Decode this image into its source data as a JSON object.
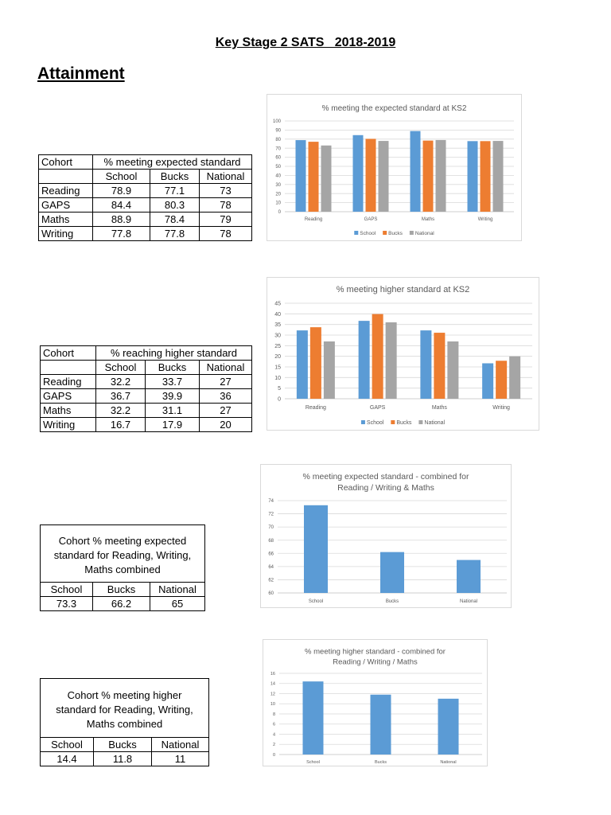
{
  "page": {
    "title": "Key Stage 2 SATS   2018-2019",
    "heading": "Attainment"
  },
  "tables": [
    {
      "cohort_header": "Cohort",
      "measure_header": "% meeting expected standard",
      "columns": [
        "School",
        "Bucks",
        "National"
      ],
      "rows": [
        {
          "label": "Reading",
          "values": [
            "78.9",
            "77.1",
            "73"
          ]
        },
        {
          "label": "GAPS",
          "values": [
            "84.4",
            "80.3",
            "78"
          ]
        },
        {
          "label": "Maths",
          "values": [
            "88.9",
            "78.4",
            "79"
          ]
        },
        {
          "label": "Writing",
          "values": [
            "77.8",
            "77.8",
            "78"
          ]
        }
      ]
    },
    {
      "cohort_header": "Cohort",
      "measure_header": "% reaching higher standard",
      "columns": [
        "School",
        "Bucks",
        "National"
      ],
      "rows": [
        {
          "label": "Reading",
          "values": [
            "32.2",
            "33.7",
            "27"
          ]
        },
        {
          "label": "GAPS",
          "values": [
            "36.7",
            "39.9",
            "36"
          ]
        },
        {
          "label": "Maths",
          "values": [
            "32.2",
            "31.1",
            "27"
          ]
        },
        {
          "label": "Writing",
          "values": [
            "16.7",
            "17.9",
            "20"
          ]
        }
      ]
    }
  ],
  "combined_tables": [
    {
      "caption_lines": [
        "Cohort % meeting expected",
        "standard for Reading, Writing,",
        "Maths combined"
      ],
      "columns": [
        "School",
        "Bucks",
        "National"
      ],
      "values": [
        "73.3",
        "66.2",
        "65"
      ]
    },
    {
      "caption_lines": [
        "Cohort % meeting higher",
        "standard for Reading, Writing,",
        "Maths combined"
      ],
      "columns": [
        "School",
        "Bucks",
        "National"
      ],
      "values": [
        "14.4",
        "11.8",
        "11"
      ]
    }
  ],
  "chart_data": [
    {
      "type": "bar",
      "title_lines": [
        "% meeting the expected standard at KS2"
      ],
      "categories": [
        "Reading",
        "GAPS",
        "Maths",
        "Writing"
      ],
      "series": [
        {
          "name": "School",
          "color": "#5B9BD5",
          "values": [
            78.9,
            84.4,
            88.9,
            77.8
          ]
        },
        {
          "name": "Bucks",
          "color": "#ED7D31",
          "values": [
            77.1,
            80.3,
            78.4,
            77.8
          ]
        },
        {
          "name": "National",
          "color": "#A5A5A5",
          "values": [
            73,
            78,
            79,
            78
          ]
        }
      ],
      "ylim": [
        0,
        100
      ],
      "yticks": [
        0,
        10,
        20,
        30,
        40,
        50,
        60,
        70,
        80,
        90,
        100
      ],
      "grid": true,
      "legend": "bottom"
    },
    {
      "type": "bar",
      "title_lines": [
        "% meeting higher standard at KS2"
      ],
      "categories": [
        "Reading",
        "GAPS",
        "Maths",
        "Writing"
      ],
      "series": [
        {
          "name": "School",
          "color": "#5B9BD5",
          "values": [
            32.2,
            36.7,
            32.2,
            16.7
          ]
        },
        {
          "name": "Bucks",
          "color": "#ED7D31",
          "values": [
            33.7,
            39.9,
            31.1,
            17.9
          ]
        },
        {
          "name": "National",
          "color": "#A5A5A5",
          "values": [
            27,
            36,
            27,
            20
          ]
        }
      ],
      "ylim": [
        0,
        45
      ],
      "yticks": [
        0,
        5,
        10,
        15,
        20,
        25,
        30,
        35,
        40,
        45
      ],
      "grid": true,
      "legend": "bottom"
    },
    {
      "type": "bar",
      "title_lines": [
        "% meeting expected standard - combined for",
        "Reading / Writing & Maths"
      ],
      "categories": [
        "School",
        "Bucks",
        "National"
      ],
      "series": [
        {
          "color": "#5B9BD5",
          "values": [
            73.3,
            66.2,
            65
          ]
        }
      ],
      "ylim": [
        60,
        74
      ],
      "yticks": [
        60,
        62,
        64,
        66,
        68,
        70,
        72,
        74
      ],
      "grid": true,
      "legend": "none"
    },
    {
      "type": "bar",
      "title_lines": [
        "% meeting higher standard - combined for",
        "Reading / Writing / Maths"
      ],
      "categories": [
        "School",
        "Bucks",
        "National"
      ],
      "series": [
        {
          "color": "#5B9BD5",
          "values": [
            14.4,
            11.8,
            11
          ]
        }
      ],
      "ylim": [
        0,
        16
      ],
      "yticks": [
        0,
        2,
        4,
        6,
        8,
        10,
        12,
        14,
        16
      ],
      "grid": true,
      "legend": "none"
    }
  ]
}
